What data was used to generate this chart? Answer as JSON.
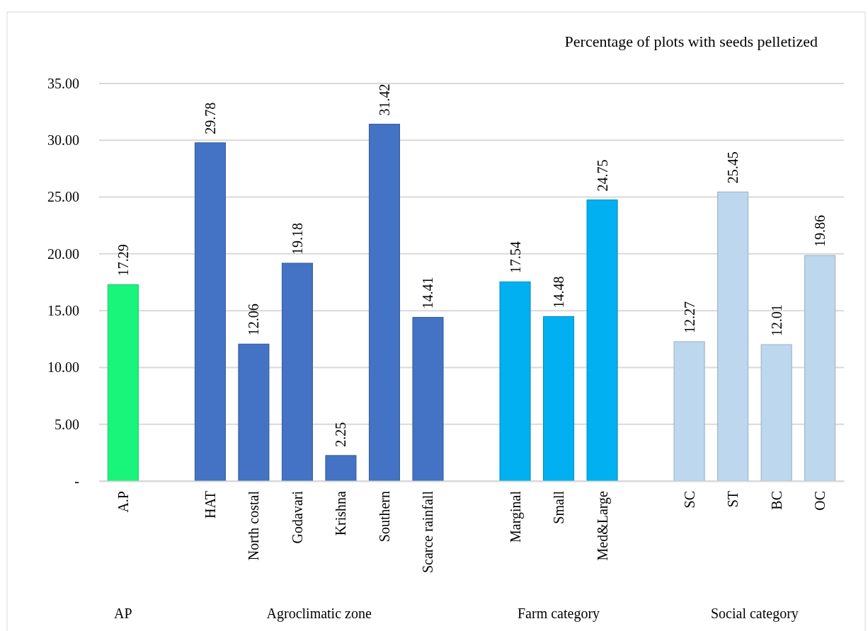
{
  "chart_data": {
    "type": "bar",
    "title": "Percentage of plots with seeds pelletized",
    "categories": [
      "A.P",
      null,
      "HAT",
      "North costal",
      "Godavari",
      "Krishna",
      "Southern",
      "Scarce rainfall",
      null,
      "Marginal",
      "Small",
      "Med&Large",
      null,
      "SC",
      "ST",
      "BC",
      "OC"
    ],
    "values": [
      17.29,
      null,
      29.78,
      12.06,
      19.18,
      2.25,
      31.42,
      14.41,
      null,
      17.54,
      14.48,
      24.75,
      null,
      12.27,
      25.45,
      12.01,
      19.86
    ],
    "colors": [
      "#19f57a",
      null,
      "#4472c4",
      "#4472c4",
      "#4472c4",
      "#4472c4",
      "#4472c4",
      "#4472c4",
      null,
      "#00b0f0",
      "#00b0f0",
      "#00b0f0",
      null,
      "#bdd7ee",
      "#bdd7ee",
      "#bdd7ee",
      "#bdd7ee"
    ],
    "ylim": [
      0,
      35
    ],
    "yticks": [
      {
        "value": 0,
        "label": "-"
      },
      {
        "value": 5,
        "label": "5.00"
      },
      {
        "value": 10,
        "label": "10.00"
      },
      {
        "value": 15,
        "label": "15.00"
      },
      {
        "value": 20,
        "label": "20.00"
      },
      {
        "value": 25,
        "label": "25.00"
      },
      {
        "value": 30,
        "label": "30.00"
      },
      {
        "value": 35,
        "label": "35.00"
      }
    ],
    "grid": "y",
    "data_labels": true,
    "annotations": [
      "AP",
      "Agroclimatic zone",
      "Farm category",
      "Social category"
    ]
  }
}
